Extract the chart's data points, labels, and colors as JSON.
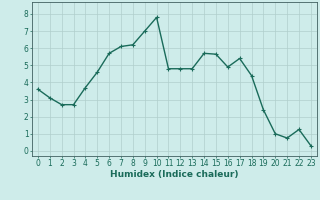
{
  "x": [
    0,
    1,
    2,
    3,
    4,
    5,
    6,
    7,
    8,
    9,
    10,
    11,
    12,
    13,
    14,
    15,
    16,
    17,
    18,
    19,
    20,
    21,
    22,
    23
  ],
  "y": [
    3.6,
    3.1,
    2.7,
    2.7,
    3.7,
    4.6,
    5.7,
    6.1,
    6.2,
    7.0,
    7.8,
    4.8,
    4.8,
    4.8,
    5.7,
    5.65,
    4.9,
    5.4,
    4.4,
    2.4,
    1.0,
    0.75,
    1.25,
    0.3
  ],
  "line_color": "#1a6b5a",
  "marker": "+",
  "markersize": 3,
  "linewidth": 1.0,
  "xlabel": "Humidex (Indice chaleur)",
  "xlim": [
    -0.5,
    23.5
  ],
  "ylim": [
    -0.3,
    8.7
  ],
  "yticks": [
    0,
    1,
    2,
    3,
    4,
    5,
    6,
    7,
    8
  ],
  "xticks": [
    0,
    1,
    2,
    3,
    4,
    5,
    6,
    7,
    8,
    9,
    10,
    11,
    12,
    13,
    14,
    15,
    16,
    17,
    18,
    19,
    20,
    21,
    22,
    23
  ],
  "bg_color": "#ceecea",
  "grid_color": "#b0cfcc",
  "axis_color": "#406060",
  "xlabel_fontsize": 6.5,
  "tick_fontsize": 5.5,
  "markeredgewidth": 0.8
}
